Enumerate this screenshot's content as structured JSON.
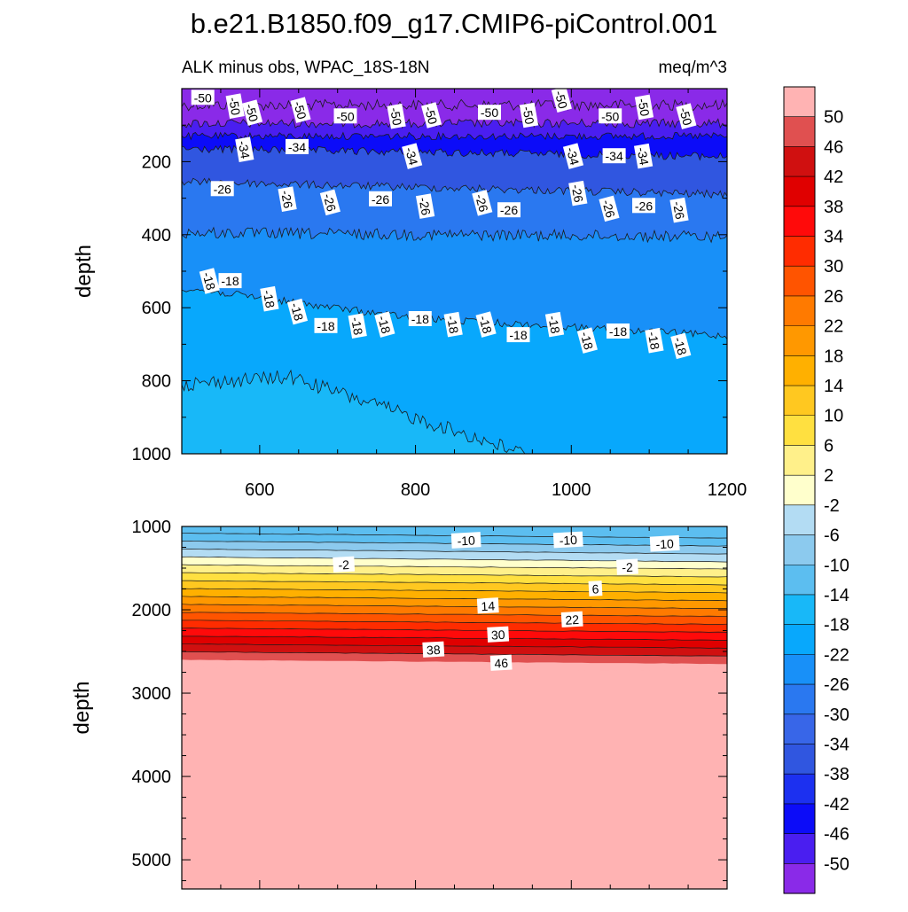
{
  "figure": {
    "title": "b.e21.B1850.f09_g17.CMIP6-piControl.001",
    "left_subtitle": "ALK minus obs, WPAC_18S-18N",
    "right_subtitle": "meq/m^3"
  },
  "chart_data": [
    {
      "type": "contour",
      "panel": "upper",
      "title": "ALK minus obs, WPAC_18S-18N",
      "units": "meq/m^3",
      "xlabel": "",
      "ylabel": "depth",
      "x_range": [
        500,
        1200
      ],
      "y_range": [
        1000,
        0
      ],
      "x_ticks": [
        600,
        800,
        1000,
        1200
      ],
      "y_ticks": [
        200,
        400,
        600,
        800,
        1000
      ],
      "contour_levels": [
        -50,
        -46,
        -42,
        -38,
        -34,
        -30,
        -26,
        -22,
        -18,
        -14
      ],
      "contour_labels": [
        {
          "text": "-50",
          "x": 590,
          "y": 66
        },
        {
          "text": "-50",
          "x": 527,
          "y": 25
        },
        {
          "text": "-50",
          "x": 568,
          "y": 48
        },
        {
          "text": "-50",
          "x": 652,
          "y": 59
        },
        {
          "text": "-50",
          "x": 710,
          "y": 76
        },
        {
          "text": "-50",
          "x": 775,
          "y": 76
        },
        {
          "text": "-50",
          "x": 820,
          "y": 73
        },
        {
          "text": "-50",
          "x": 895,
          "y": 66
        },
        {
          "text": "-50",
          "x": 945,
          "y": 73
        },
        {
          "text": "-50",
          "x": 987,
          "y": 30
        },
        {
          "text": "-50",
          "x": 1050,
          "y": 76
        },
        {
          "text": "-50",
          "x": 1093,
          "y": 51
        },
        {
          "text": "-50",
          "x": 1147,
          "y": 76
        },
        {
          "text": "-34",
          "x": 648,
          "y": 160
        },
        {
          "text": "-34",
          "x": 580,
          "y": 167
        },
        {
          "text": "-34",
          "x": 795,
          "y": 185
        },
        {
          "text": "-34",
          "x": 1055,
          "y": 185
        },
        {
          "text": "-34",
          "x": 1092,
          "y": 185
        },
        {
          "text": "-34",
          "x": 1002,
          "y": 185
        },
        {
          "text": "-26",
          "x": 552,
          "y": 275
        },
        {
          "text": "-26",
          "x": 635,
          "y": 303
        },
        {
          "text": "-26",
          "x": 690,
          "y": 312
        },
        {
          "text": "-26",
          "x": 755,
          "y": 303
        },
        {
          "text": "-26",
          "x": 812,
          "y": 322
        },
        {
          "text": "-26",
          "x": 885,
          "y": 313
        },
        {
          "text": "-26",
          "x": 920,
          "y": 333
        },
        {
          "text": "-26",
          "x": 1008,
          "y": 287
        },
        {
          "text": "-26",
          "x": 1048,
          "y": 329
        },
        {
          "text": "-26",
          "x": 1093,
          "y": 321
        },
        {
          "text": "-26",
          "x": 1138,
          "y": 333
        },
        {
          "text": "-18",
          "x": 535,
          "y": 527
        },
        {
          "text": "-18",
          "x": 562,
          "y": 527
        },
        {
          "text": "-18",
          "x": 612,
          "y": 576
        },
        {
          "text": "-18",
          "x": 648,
          "y": 611
        },
        {
          "text": "-18",
          "x": 685,
          "y": 650
        },
        {
          "text": "-18",
          "x": 725,
          "y": 650
        },
        {
          "text": "-18",
          "x": 760,
          "y": 646
        },
        {
          "text": "-18",
          "x": 806,
          "y": 631
        },
        {
          "text": "-18",
          "x": 848,
          "y": 646
        },
        {
          "text": "-18",
          "x": 890,
          "y": 646
        },
        {
          "text": "-18",
          "x": 932,
          "y": 675
        },
        {
          "text": "-18",
          "x": 978,
          "y": 646
        },
        {
          "text": "-18",
          "x": 1020,
          "y": 690
        },
        {
          "text": "-18",
          "x": 1060,
          "y": 665
        },
        {
          "text": "-18",
          "x": 1106,
          "y": 690
        },
        {
          "text": "-18",
          "x": 1140,
          "y": 705
        }
      ]
    },
    {
      "type": "contour",
      "panel": "lower",
      "xlabel": "",
      "ylabel": "depth",
      "x_range": [
        500,
        1200
      ],
      "y_range": [
        5350,
        1000
      ],
      "y_ticks": [
        1000,
        2000,
        3000,
        4000,
        5000
      ],
      "contour_levels": [
        -10,
        -6,
        -2,
        2,
        6,
        10,
        14,
        18,
        22,
        26,
        30,
        34,
        38,
        42,
        46,
        50
      ],
      "contour_labels": [
        {
          "text": "-10",
          "x": 865,
          "y": 1170
        },
        {
          "text": "-10",
          "x": 996,
          "y": 1165
        },
        {
          "text": "-10",
          "x": 1120,
          "y": 1210
        },
        {
          "text": "-2",
          "x": 708,
          "y": 1460
        },
        {
          "text": "-2",
          "x": 1072,
          "y": 1490
        },
        {
          "text": "6",
          "x": 1031,
          "y": 1750
        },
        {
          "text": "14",
          "x": 893,
          "y": 1955
        },
        {
          "text": "22",
          "x": 1001,
          "y": 2120
        },
        {
          "text": "30",
          "x": 906,
          "y": 2300
        },
        {
          "text": "38",
          "x": 823,
          "y": 2480
        },
        {
          "text": "46",
          "x": 910,
          "y": 2640
        }
      ]
    }
  ],
  "colorbar": {
    "labels": [
      "50",
      "46",
      "42",
      "38",
      "34",
      "30",
      "26",
      "22",
      "18",
      "14",
      "10",
      "6",
      "2",
      "-2",
      "-6",
      "-10",
      "-14",
      "-18",
      "-22",
      "-26",
      "-30",
      "-34",
      "-38",
      "-42",
      "-46",
      "-50"
    ],
    "colors": [
      "#ffb3b3",
      "#e05050",
      "#d01010",
      "#e00000",
      "#ff0a0a",
      "#ff2c00",
      "#ff5400",
      "#ff7a00",
      "#ff9800",
      "#ffb000",
      "#ffc820",
      "#ffe040",
      "#fff08a",
      "#ffffcc",
      "#b3dcf3",
      "#8ccaee",
      "#5cbef0",
      "#18b8f8",
      "#08a8fc",
      "#1890f8",
      "#2a78f0",
      "#3866e8",
      "#3056e0",
      "#1c30f0",
      "#0c0cf8",
      "#4a1ef0",
      "#8a2ae8"
    ]
  }
}
